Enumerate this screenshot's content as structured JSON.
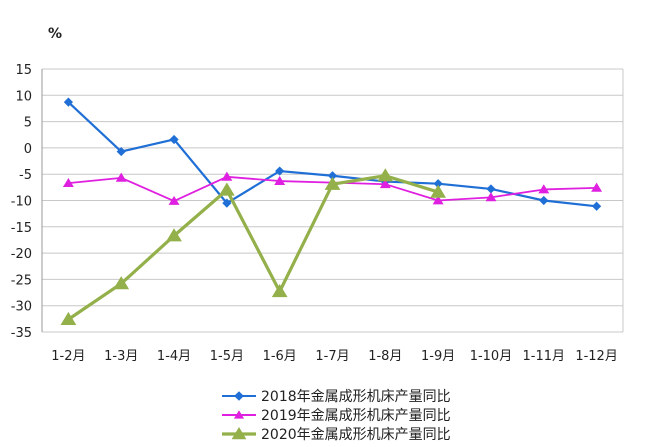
{
  "chart_data": {
    "type": "line",
    "title": "",
    "xlabel": "",
    "ylabel": "%",
    "ylim": [
      -35,
      15
    ],
    "yticks": [
      15,
      10,
      5,
      0,
      -5,
      -10,
      -15,
      -20,
      -25,
      -30,
      -35
    ],
    "grid": true,
    "legend_position": "bottom",
    "categories": [
      "1-2月",
      "1-3月",
      "1-4月",
      "1-5月",
      "1-6月",
      "1-7月",
      "1-8月",
      "1-9月",
      "1-10月",
      "1-11月",
      "1-12月"
    ],
    "series": [
      {
        "name": "2018年金属成形机床产量同比",
        "color": "#1f6fd6",
        "marker": "diamond",
        "values": [
          8.7,
          -0.7,
          1.6,
          -10.5,
          -4.4,
          -5.3,
          -6.4,
          -6.8,
          -7.8,
          -10.0,
          -11.1
        ]
      },
      {
        "name": "2019年金属成形机床产量同比",
        "color": "#e020e0",
        "marker": "triangle",
        "values": [
          -6.7,
          -5.7,
          -10.1,
          -5.5,
          -6.3,
          -6.6,
          -6.9,
          -10.0,
          -9.4,
          -7.9,
          -7.6
        ]
      },
      {
        "name": "2020年金属成形机床产量同比",
        "color": "#93b04a",
        "marker": "triangle",
        "values": [
          -32.6,
          -25.8,
          -16.7,
          -8.0,
          -27.3,
          -6.9,
          -5.3,
          -8.4,
          null,
          null,
          null
        ]
      }
    ]
  }
}
